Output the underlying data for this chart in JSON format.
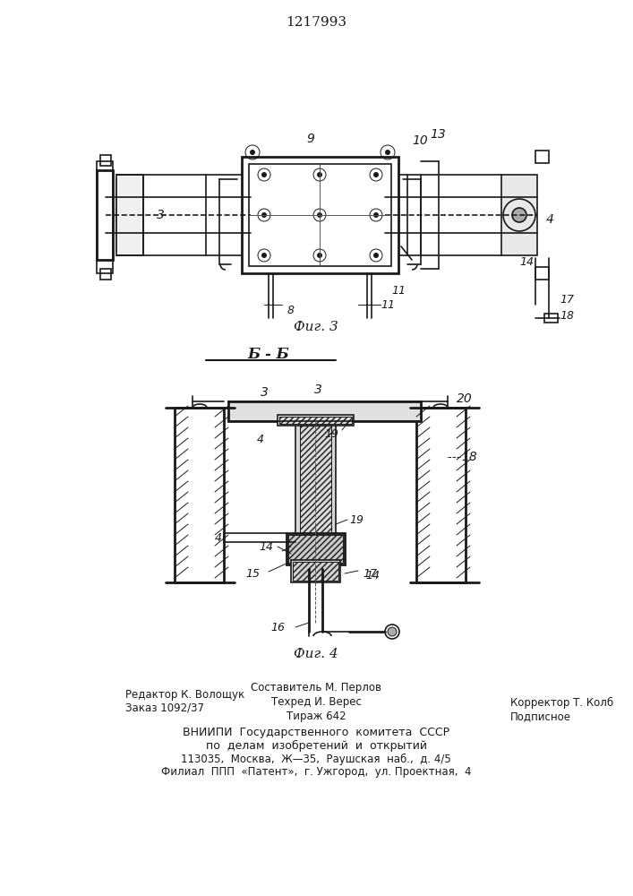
{
  "title": "1217993",
  "fig3_caption": "Фиг. 3",
  "fig4_caption": "Фиг. 4",
  "section_label": "Б - Б",
  "footer_lines": [
    "Редактор К. Волощук          Составитель М. Перлов",
    "Заказ 1092/37                Техред И. Верес          Корректор Т. Колб",
    "                             Тираж 642                Подписное",
    "        ВНИИПИ  Государственного  комитета  СССР",
    "             по  делам  изобретений  и  открытий",
    "    113035,  Москва,  Ж—35,  Раушская  наб.,  д. 4/5",
    "   Филиал  ППП  «Патент»,  г. Ужгород,  ул. Проектная,  4"
  ],
  "line_color": "#1a1a1a",
  "bg_color": "#ffffff",
  "lw": 1.2,
  "lw_thin": 0.7,
  "lw_thick": 2.0
}
